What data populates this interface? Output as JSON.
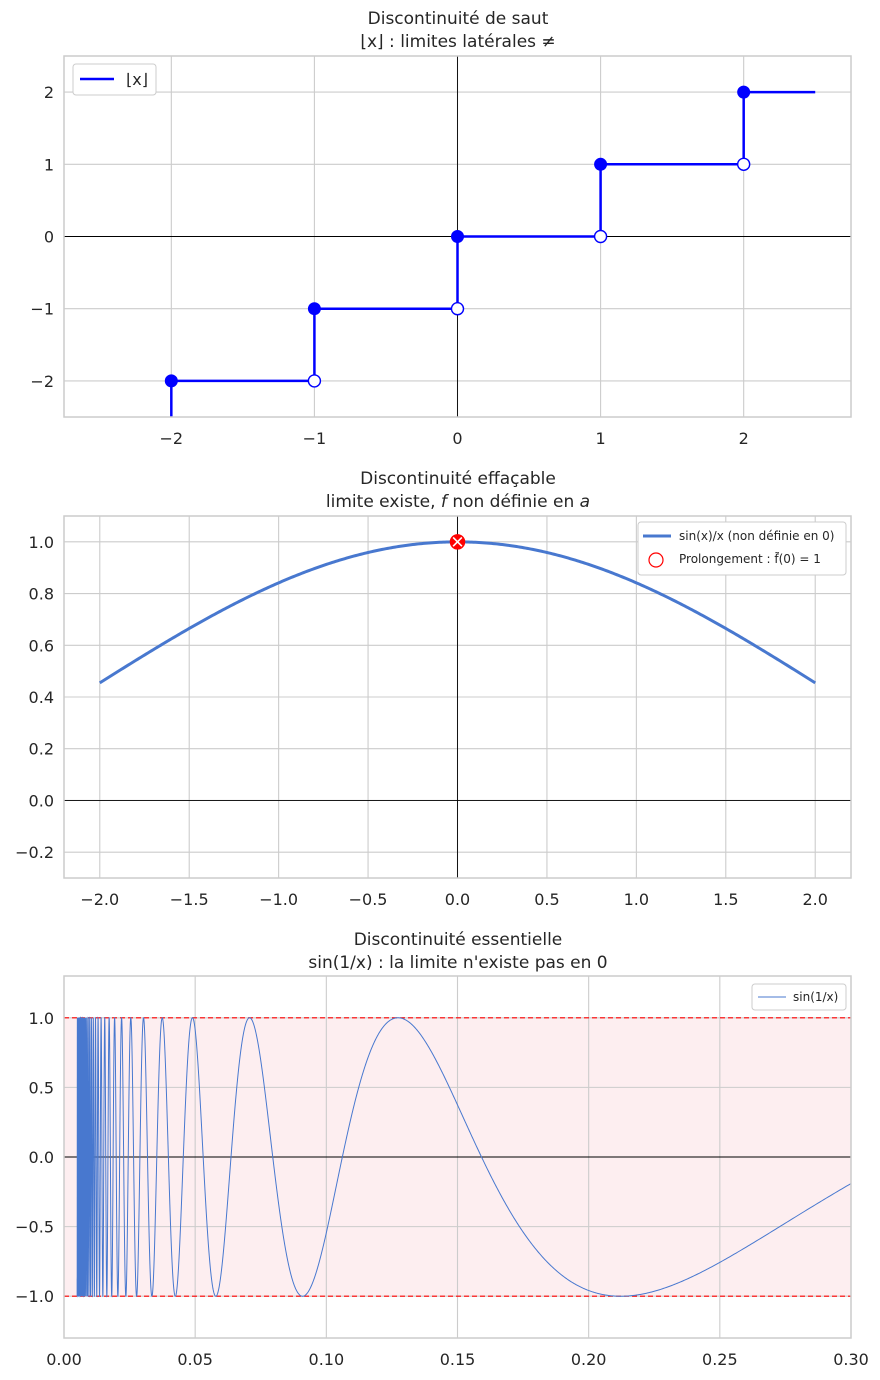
{
  "colors": {
    "grid": "#cccccc",
    "axes_frame": "#cccccc",
    "zero_line": "#000000",
    "step_blue": "#0000ff",
    "curve_blue": "#4878cf",
    "red": "#ff0000",
    "band_fill": "#fdeef0"
  },
  "chart_data": [
    {
      "type": "line",
      "name": "floor-function",
      "title": [
        "Discontinuité de saut",
        "⌊x⌋ : limites latérales  ≠"
      ],
      "xlim": [
        -2.75,
        2.75
      ],
      "ylim": [
        -2.5,
        2.5
      ],
      "xticks": [
        -2,
        -1,
        0,
        1,
        2
      ],
      "yticks": [
        -2,
        -1,
        0,
        1,
        2
      ],
      "xtick_labels": [
        "−2",
        "−1",
        "0",
        "1",
        "2"
      ],
      "ytick_labels": [
        "−2",
        "−1",
        "0",
        "1",
        "2"
      ],
      "legend": {
        "position": "top-left",
        "entries": [
          "⌊x⌋"
        ]
      },
      "segments": [
        {
          "x": [
            -2,
            -1
          ],
          "y": -2
        },
        {
          "x": [
            -1,
            0
          ],
          "y": -1
        },
        {
          "x": [
            0,
            1
          ],
          "y": 0
        },
        {
          "x": [
            1,
            2
          ],
          "y": 1
        },
        {
          "x": [
            2,
            2.5
          ],
          "y": 2
        }
      ],
      "jumps": [
        {
          "x": -2,
          "y": [
            -2.5,
            -2
          ]
        },
        {
          "x": -1,
          "y": [
            -2,
            -1
          ]
        },
        {
          "x": 0,
          "y": [
            -1,
            0
          ]
        },
        {
          "x": 1,
          "y": [
            0,
            1
          ]
        },
        {
          "x": 2,
          "y": [
            1,
            2
          ]
        }
      ],
      "closed_points": [
        [
          -2,
          -2
        ],
        [
          -1,
          -1
        ],
        [
          0,
          0
        ],
        [
          1,
          1
        ],
        [
          2,
          2
        ]
      ],
      "open_points": [
        [
          -1,
          -2
        ],
        [
          0,
          -1
        ],
        [
          1,
          0
        ],
        [
          2,
          1
        ]
      ]
    },
    {
      "type": "line",
      "name": "sinc-removable",
      "title": [
        "Discontinuité effaçable",
        "limite existe, f non définie en a"
      ],
      "function": "sin(x)/x",
      "x_range": [
        -2.0,
        2.0
      ],
      "xlim": [
        -2.2,
        2.2
      ],
      "ylim": [
        -0.3,
        1.1
      ],
      "xticks": [
        -2.0,
        -1.5,
        -1.0,
        -0.5,
        0.0,
        0.5,
        1.0,
        1.5,
        2.0
      ],
      "yticks": [
        -0.2,
        0.0,
        0.2,
        0.4,
        0.6,
        0.8,
        1.0
      ],
      "xtick_labels": [
        "−2.0",
        "−1.5",
        "−1.0",
        "−0.5",
        "0.0",
        "0.5",
        "1.0",
        "1.5",
        "2.0"
      ],
      "ytick_labels": [
        "−0.2",
        "0.0",
        "0.2",
        "0.4",
        "0.6",
        "0.8",
        "1.0"
      ],
      "legend": {
        "position": "top-right",
        "entries": [
          "sin(x)/x (non définie en 0)",
          "Prolongement : f̃(0) = 1"
        ]
      },
      "hole": [
        0,
        1
      ],
      "extension_point": [
        0,
        1
      ]
    },
    {
      "type": "line",
      "name": "sin-inverse-essential",
      "title": [
        "Discontinuité essentielle",
        "sin(1/x) : la limite n'existe pas en 0"
      ],
      "function": "sin(1/x)",
      "x_range": [
        0.005,
        0.3
      ],
      "xlim": [
        0.0,
        0.3
      ],
      "ylim": [
        -1.3,
        1.3
      ],
      "xticks": [
        0.0,
        0.05,
        0.1,
        0.15,
        0.2,
        0.25,
        0.3
      ],
      "yticks": [
        -1.0,
        -0.5,
        0.0,
        0.5,
        1.0
      ],
      "xtick_labels": [
        "0.00",
        "0.05",
        "0.10",
        "0.15",
        "0.20",
        "0.25",
        "0.30"
      ],
      "ytick_labels": [
        "−1.0",
        "−0.5",
        "0.0",
        "0.5",
        "1.0"
      ],
      "legend": {
        "position": "top-right",
        "entries": [
          "sin(1/x)"
        ]
      },
      "band": [
        -1,
        1
      ],
      "dashed_lines": [
        -1,
        1
      ]
    }
  ]
}
